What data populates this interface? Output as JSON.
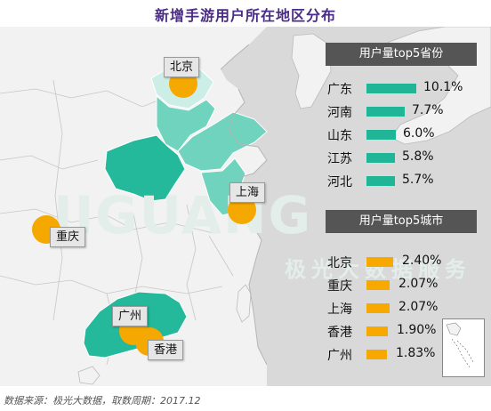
{
  "title": "新增手游用户所在地区分布",
  "watermark": "JIGUANG",
  "watermark_sub": "极光大数据服务",
  "colors": {
    "title": "#4a2c86",
    "top_province": "#23b99a",
    "province_light": "#6fd3bd",
    "province_lighter": "#cdeee6",
    "city_dot": "#f5a800",
    "land": "#f2f2f2",
    "sea": "#d9d9d9",
    "panel_header": "#555555",
    "province_bar": "#1fb596",
    "city_bar": "#f7a900"
  },
  "city_labels": [
    {
      "name": "北京"
    },
    {
      "name": "上海"
    },
    {
      "name": "重庆"
    },
    {
      "name": "广州"
    },
    {
      "name": "香港"
    }
  ],
  "province_panel": {
    "header": "用户量top5省份",
    "rows": [
      {
        "name": "广东",
        "value": "10.1%",
        "pct": 10.1
      },
      {
        "name": "河南",
        "value": "7.7%",
        "pct": 7.7
      },
      {
        "name": "山东",
        "value": "6.0%",
        "pct": 6.0
      },
      {
        "name": "江苏",
        "value": "5.8%",
        "pct": 5.8
      },
      {
        "name": "河北",
        "value": "5.7%",
        "pct": 5.7
      }
    ]
  },
  "city_panel": {
    "header": "用户量top5城市",
    "rows": [
      {
        "name": "北京",
        "value": "2.40%",
        "pct": 2.4
      },
      {
        "name": "重庆",
        "value": "2.07%",
        "pct": 2.07
      },
      {
        "name": "上海",
        "value": "2.07%",
        "pct": 2.07
      },
      {
        "name": "香港",
        "value": "1.90%",
        "pct": 1.9
      },
      {
        "name": "广州",
        "value": "1.83%",
        "pct": 1.83
      }
    ]
  },
  "source": "数据来源：极光大数据，取数周期：2017.12"
}
